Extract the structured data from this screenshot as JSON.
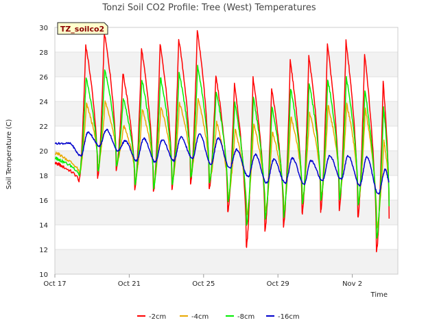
{
  "chart_data": {
    "type": "line",
    "title": "Tonzi Soil CO2 Profile: Tree (West) Temperatures",
    "xlabel": "Time",
    "ylabel": "Soil Temperature (C)",
    "tag": "TZ_soilco2",
    "ylim": [
      10,
      30
    ],
    "yticks": [
      10,
      12,
      14,
      16,
      18,
      20,
      22,
      24,
      26,
      28,
      30
    ],
    "xlim": [
      "2016-10-17",
      "2016-11-04"
    ],
    "xticks": [
      {
        "date": "2016-10-17",
        "label": "Oct 17"
      },
      {
        "date": "2016-10-21",
        "label": "Oct 21"
      },
      {
        "date": "2016-10-25",
        "label": "Oct 25"
      },
      {
        "date": "2016-10-29",
        "label": "Oct 29"
      },
      {
        "date": "2016-11-02",
        "label": "Nov 2"
      }
    ],
    "grid": "horizontal bands",
    "legend_position": "bottom",
    "days": [
      "2016-10-17",
      "2016-10-18",
      "2016-10-19",
      "2016-10-20",
      "2016-10-21",
      "2016-10-22",
      "2016-10-23",
      "2016-10-24",
      "2016-10-25",
      "2016-10-26",
      "2016-10-27",
      "2016-10-28",
      "2016-10-29",
      "2016-10-30",
      "2016-10-31",
      "2016-11-01",
      "2016-11-02",
      "2016-11-03"
    ],
    "series": [
      {
        "name": "-2cm",
        "color": "#ff0000",
        "max": [
          null,
          28.6,
          29.6,
          26.3,
          28.3,
          28.7,
          29.1,
          29.8,
          26.1,
          25.5,
          25.9,
          25.1,
          27.3,
          27.7,
          28.6,
          28.9,
          27.9,
          25.6
        ],
        "min": [
          18.8,
          17.5,
          17.8,
          18.5,
          16.8,
          16.6,
          16.9,
          17.4,
          16.9,
          15.0,
          12.2,
          13.6,
          13.9,
          14.9,
          15.1,
          15.2,
          14.6,
          11.8
        ],
        "end": 14.5
      },
      {
        "name": "-4cm",
        "color": "#e8a800",
        "max": [
          null,
          23.8,
          24.0,
          22.1,
          23.4,
          23.6,
          23.9,
          24.2,
          22.3,
          21.8,
          22.2,
          21.6,
          22.8,
          23.1,
          23.7,
          23.8,
          23.4,
          20.8
        ],
        "min": [
          19.6,
          18.1,
          18.6,
          19.0,
          17.5,
          17.3,
          17.5,
          18.0,
          17.6,
          16.2,
          14.8,
          15.2,
          15.3,
          16.1,
          16.3,
          16.4,
          15.8,
          13.8
        ],
        "end": 16.0
      },
      {
        "name": "-8cm",
        "color": "#00ee00",
        "max": [
          null,
          25.9,
          26.6,
          24.3,
          25.8,
          26.0,
          26.3,
          26.9,
          24.8,
          23.9,
          24.3,
          23.6,
          25.1,
          25.5,
          25.8,
          26.0,
          24.9,
          23.5
        ],
        "min": [
          19.2,
          18.0,
          18.3,
          18.7,
          17.3,
          17.0,
          17.3,
          17.8,
          17.4,
          15.9,
          14.0,
          14.5,
          14.7,
          15.7,
          16.0,
          16.1,
          15.6,
          12.9
        ],
        "end": 15.5
      },
      {
        "name": "-16cm",
        "color": "#0000cc",
        "max": [
          20.6,
          21.5,
          21.7,
          20.8,
          21.0,
          20.9,
          21.1,
          21.4,
          21.0,
          20.1,
          19.7,
          19.3,
          19.4,
          19.2,
          19.6,
          19.6,
          19.5,
          18.5
        ],
        "min": [
          null,
          19.6,
          20.4,
          20.0,
          19.2,
          19.1,
          19.2,
          19.4,
          18.9,
          18.6,
          17.9,
          17.4,
          17.4,
          17.3,
          17.6,
          17.7,
          17.2,
          16.5
        ],
        "end": 17.5
      }
    ]
  }
}
